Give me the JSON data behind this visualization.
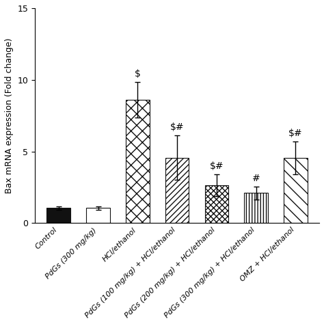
{
  "categories": [
    "Control",
    "PdGs (300 mg/kg)",
    "HCl/ethanol",
    "PdGs (100 mg/kg) + HCl/ethanol",
    "PdGs (200 mg/kg) + HCl/ethanol",
    "PdGs (300 mg/kg) + HCl/ethanol",
    "OMZ + HCl/ethanol"
  ],
  "values": [
    1.05,
    1.05,
    8.6,
    4.55,
    2.65,
    2.1,
    4.55
  ],
  "errors": [
    0.12,
    0.12,
    1.25,
    1.55,
    0.75,
    0.45,
    1.15
  ],
  "face_colors": [
    "#111111",
    "#ffffff",
    "#ffffff",
    "#ffffff",
    "#ffffff",
    "#ffffff",
    "#ffffff"
  ],
  "annotations": [
    "",
    "",
    "$",
    "$#",
    "$#",
    "#",
    "$#"
  ],
  "ylabel": "Bax mRNA expression (Fold change)",
  "ylim": [
    0,
    15
  ],
  "yticks": [
    0,
    5,
    10,
    15
  ],
  "bar_width": 0.6,
  "annot_fontsize": 10,
  "tick_fontsize": 8,
  "ylabel_fontsize": 9
}
